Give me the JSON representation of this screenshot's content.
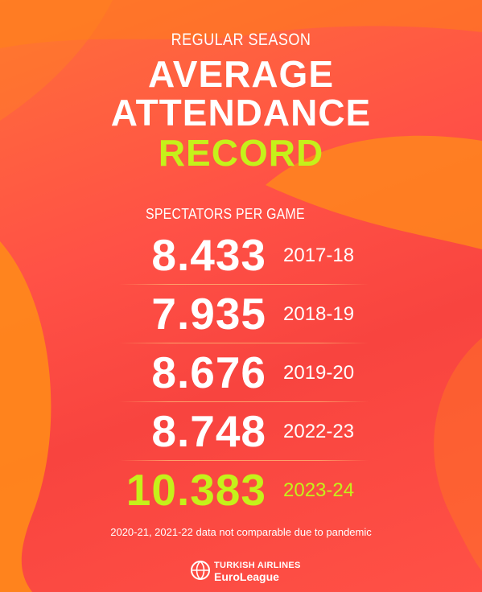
{
  "header": {
    "subtitle": "REGULAR SEASON",
    "title_line1": "AVERAGE",
    "title_line2": "ATTENDANCE",
    "title_line3": "RECORD"
  },
  "section_label": "SPECTATORS PER GAME",
  "rows": [
    {
      "value": "8.433",
      "season": "2017-18",
      "highlight": false
    },
    {
      "value": "7.935",
      "season": "2018-19",
      "highlight": false
    },
    {
      "value": "8.676",
      "season": "2019-20",
      "highlight": false
    },
    {
      "value": "8.748",
      "season": "2022-23",
      "highlight": false
    },
    {
      "value": "10.383",
      "season": "2023-24",
      "highlight": true
    }
  ],
  "footnote": "2020-21, 2021-22 data not comparable due to pandemic",
  "logo": {
    "line1": "TURKISH AIRLINES",
    "line2": "EuroLeague",
    "icon": "euroleague-ball-icon"
  },
  "colors": {
    "background": "#ff5146",
    "accent_orange": "#ff7a1e",
    "highlight_lime": "#c5f11a",
    "text": "#ffffff"
  }
}
